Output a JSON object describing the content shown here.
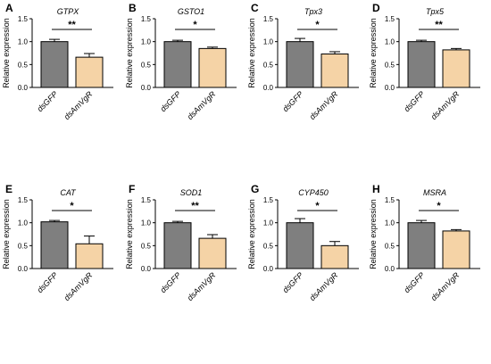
{
  "colors": {
    "dsGFP": "#7f7f7f",
    "dsAmVgR": "#f5d3a6",
    "ink": "#000000"
  },
  "chart_data": [
    {
      "panel": "A",
      "title": "GTPX",
      "type": "bar",
      "ylabel": "Relative expression",
      "categories": [
        "dsGFP",
        "dsAmVgR"
      ],
      "values": [
        1.0,
        0.66
      ],
      "errors": [
        0.05,
        0.08
      ],
      "ylim": [
        0,
        1.5
      ],
      "yticks": [
        "0.0",
        "0.5",
        "1.0",
        "1.5"
      ],
      "significance": "**"
    },
    {
      "panel": "B",
      "title": "GSTO1",
      "type": "bar",
      "ylabel": "Relative expression",
      "categories": [
        "dsGFP",
        "dsAmVgR"
      ],
      "values": [
        1.0,
        0.85
      ],
      "errors": [
        0.03,
        0.03
      ],
      "ylim": [
        0,
        1.5
      ],
      "yticks": [
        "0.0",
        "0.5",
        "1.0",
        "1.5"
      ],
      "significance": "*"
    },
    {
      "panel": "C",
      "title": "Tpx3",
      "type": "bar",
      "ylabel": "Relative expression",
      "categories": [
        "dsGFP",
        "dsAmVgR"
      ],
      "values": [
        1.0,
        0.73
      ],
      "errors": [
        0.07,
        0.05
      ],
      "ylim": [
        0,
        1.5
      ],
      "yticks": [
        "0.0",
        "0.5",
        "1.0",
        "1.5"
      ],
      "significance": "*"
    },
    {
      "panel": "D",
      "title": "Tpx5",
      "type": "bar",
      "ylabel": "Relative expression",
      "categories": [
        "dsGFP",
        "dsAmVgR"
      ],
      "values": [
        1.0,
        0.82
      ],
      "errors": [
        0.03,
        0.03
      ],
      "ylim": [
        0,
        1.5
      ],
      "yticks": [
        "0.0",
        "0.5",
        "1.0",
        "1.5"
      ],
      "significance": "**"
    },
    {
      "panel": "E",
      "title": "CAT",
      "type": "bar",
      "ylabel": "Relative expression",
      "categories": [
        "dsGFP",
        "dsAmVgR"
      ],
      "values": [
        1.02,
        0.54
      ],
      "errors": [
        0.03,
        0.17
      ],
      "ylim": [
        0,
        1.5
      ],
      "yticks": [
        "0.0",
        "0.5",
        "1.0",
        "1.5"
      ],
      "significance": "*"
    },
    {
      "panel": "F",
      "title": "SOD1",
      "type": "bar",
      "ylabel": "Relative expression",
      "categories": [
        "dsGFP",
        "dsAmVgR"
      ],
      "values": [
        1.0,
        0.66
      ],
      "errors": [
        0.03,
        0.08
      ],
      "ylim": [
        0,
        1.5
      ],
      "yticks": [
        "0.0",
        "0.5",
        "1.0",
        "1.5"
      ],
      "significance": "**"
    },
    {
      "panel": "G",
      "title": "CYP450",
      "type": "bar",
      "ylabel": "Relative expression",
      "categories": [
        "dsGFP",
        "dsAmVgR"
      ],
      "values": [
        1.0,
        0.5
      ],
      "errors": [
        0.09,
        0.09
      ],
      "ylim": [
        0,
        1.5
      ],
      "yticks": [
        "0.0",
        "0.5",
        "1.0",
        "1.5"
      ],
      "significance": "*"
    },
    {
      "panel": "H",
      "title": "MSRA",
      "type": "bar",
      "ylabel": "Relative expression",
      "categories": [
        "dsGFP",
        "dsAmVgR"
      ],
      "values": [
        1.0,
        0.82
      ],
      "errors": [
        0.05,
        0.03
      ],
      "ylim": [
        0,
        1.5
      ],
      "yticks": [
        "0.0",
        "0.5",
        "1.0",
        "1.5"
      ],
      "significance": "*"
    }
  ]
}
